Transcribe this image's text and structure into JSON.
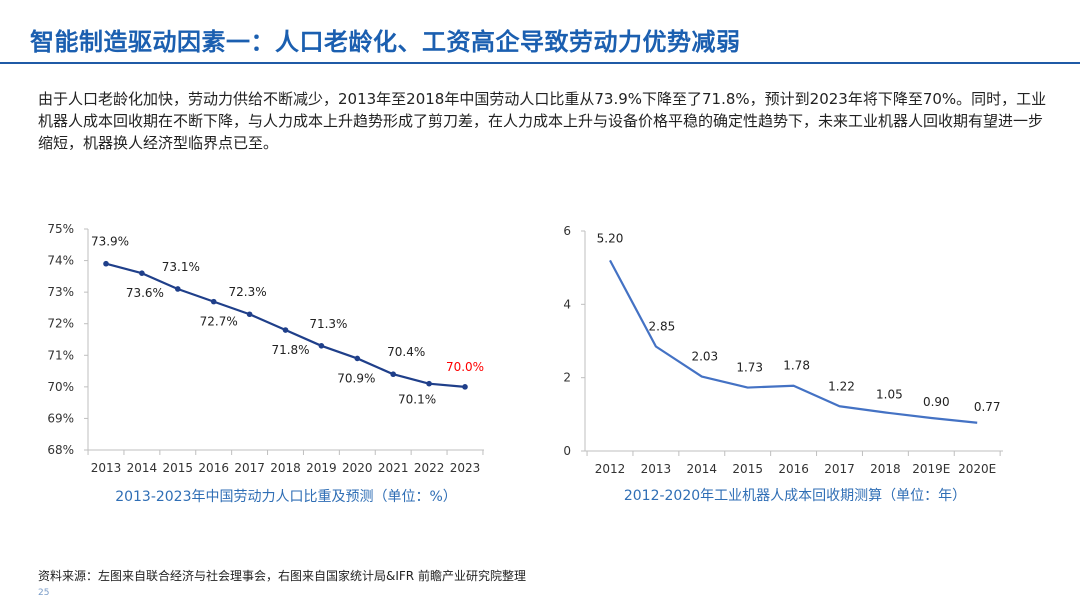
{
  "page": {
    "title": "智能制造驱动因素一：人口老龄化、工资高企导致劳动力优势减弱",
    "paragraph": "由于人口老龄化加快，劳动力供给不断减少，2013年至2018年中国劳动人口比重从73.9%下降至了71.8%，预计到2023年将下降至70%。同时，工业机器人成本回收期在不断下降，与人力成本上升趋势形成了剪刀差，在人力成本上升与设备价格平稳的确定性趋势下，未来工业机器人回收期有望进一步缩短，机器换人经济型临界点已至。",
    "source": "资料来源：左图来自联合经济与社会理事会，右图来自国家统计局&IFR 前瞻产业研究院整理",
    "page_number": "25"
  },
  "colors": {
    "title": "#1b5fb0",
    "left_line": "#1f3f8a",
    "right_line": "#4472c4",
    "highlight": "#ff0000",
    "caption": "#2f6eb5"
  },
  "chart_data": [
    {
      "type": "line",
      "title": "2013-2023年中国劳动力人口比重及预测（单位：%）",
      "x": [
        "2013",
        "2014",
        "2015",
        "2016",
        "2017",
        "2018",
        "2019",
        "2020",
        "2021",
        "2022",
        "2023"
      ],
      "values": [
        73.9,
        73.6,
        73.1,
        72.7,
        72.3,
        71.8,
        71.3,
        70.9,
        70.4,
        70.1,
        70.0
      ],
      "data_labels": [
        "73.9%",
        "73.6%",
        "73.1%",
        "72.7%",
        "72.3%",
        "71.8%",
        "71.3%",
        "70.9%",
        "70.4%",
        "70.1%",
        "70.0%"
      ],
      "y_ticks": [
        68,
        69,
        70,
        71,
        72,
        73,
        74,
        75
      ],
      "y_tick_labels": [
        "68%",
        "69%",
        "70%",
        "71%",
        "72%",
        "73%",
        "74%",
        "75%"
      ],
      "ylim": [
        68,
        75
      ],
      "highlight_index": 10
    },
    {
      "type": "line",
      "title": "2012-2020年工业机器人成本回收期测算（单位：年）",
      "x": [
        "2012",
        "2013",
        "2014",
        "2015",
        "2016",
        "2017",
        "2018",
        "2019E",
        "2020E"
      ],
      "values": [
        5.2,
        2.85,
        2.03,
        1.73,
        1.78,
        1.22,
        1.05,
        0.9,
        0.77
      ],
      "data_labels": [
        "5.20",
        "2.85",
        "2.03",
        "1.73",
        "1.78",
        "1.22",
        "1.05",
        "0.90",
        "0.77"
      ],
      "y_ticks": [
        0,
        2,
        4,
        6
      ],
      "y_tick_labels": [
        "0",
        "2",
        "4",
        "6"
      ],
      "ylim": [
        0,
        6
      ]
    }
  ]
}
